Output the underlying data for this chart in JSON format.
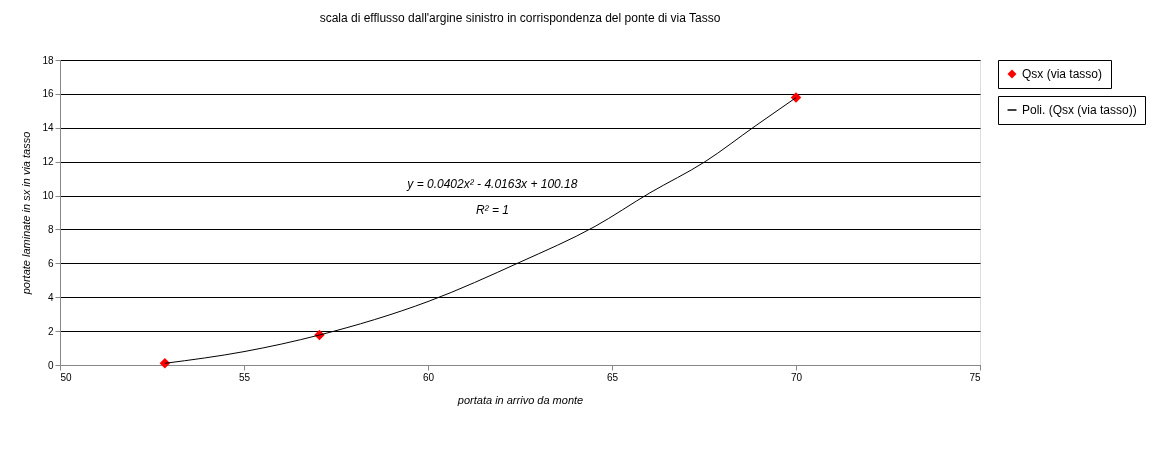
{
  "chart_data": {
    "type": "scatter",
    "title": "scala di efflusso dall'argine sinistro in corrispondenza del ponte di via Tasso",
    "xlabel": "portata in arrivo da monte",
    "ylabel": "portate laminate in sx in via tasso",
    "series": [
      {
        "name": "Qsx (via tasso)",
        "color": "#ff0000",
        "marker": "diamond",
        "x": [
          52.85,
          57.05,
          70.0
        ],
        "values": [
          0.1,
          1.77,
          15.78
        ]
      },
      {
        "name": "Poli. (Qsx (via tasso))",
        "color": "#000000",
        "type": "line",
        "marker": "none",
        "line_style": "solid",
        "x": [
          52.85,
          55.0,
          57.05,
          60.03,
          62.5,
          64.54,
          66.03,
          67.53,
          68.89,
          70.0
        ],
        "values": [
          0.1,
          0.79,
          1.77,
          3.77,
          6.07,
          8.18,
          10.16,
          12.0,
          14.1,
          15.78
        ]
      }
    ],
    "annotations": [
      "y = 0.0402x² - 4.0163x + 100.18",
      "R² = 1"
    ],
    "xlim": [
      50,
      75
    ],
    "xticks": [
      50,
      55,
      60,
      65,
      70,
      75
    ],
    "ylim": [
      0,
      18
    ],
    "yticks": [
      0,
      2,
      4,
      6,
      8,
      10,
      12,
      14,
      16,
      18
    ],
    "grid": "y",
    "legend": "right"
  }
}
